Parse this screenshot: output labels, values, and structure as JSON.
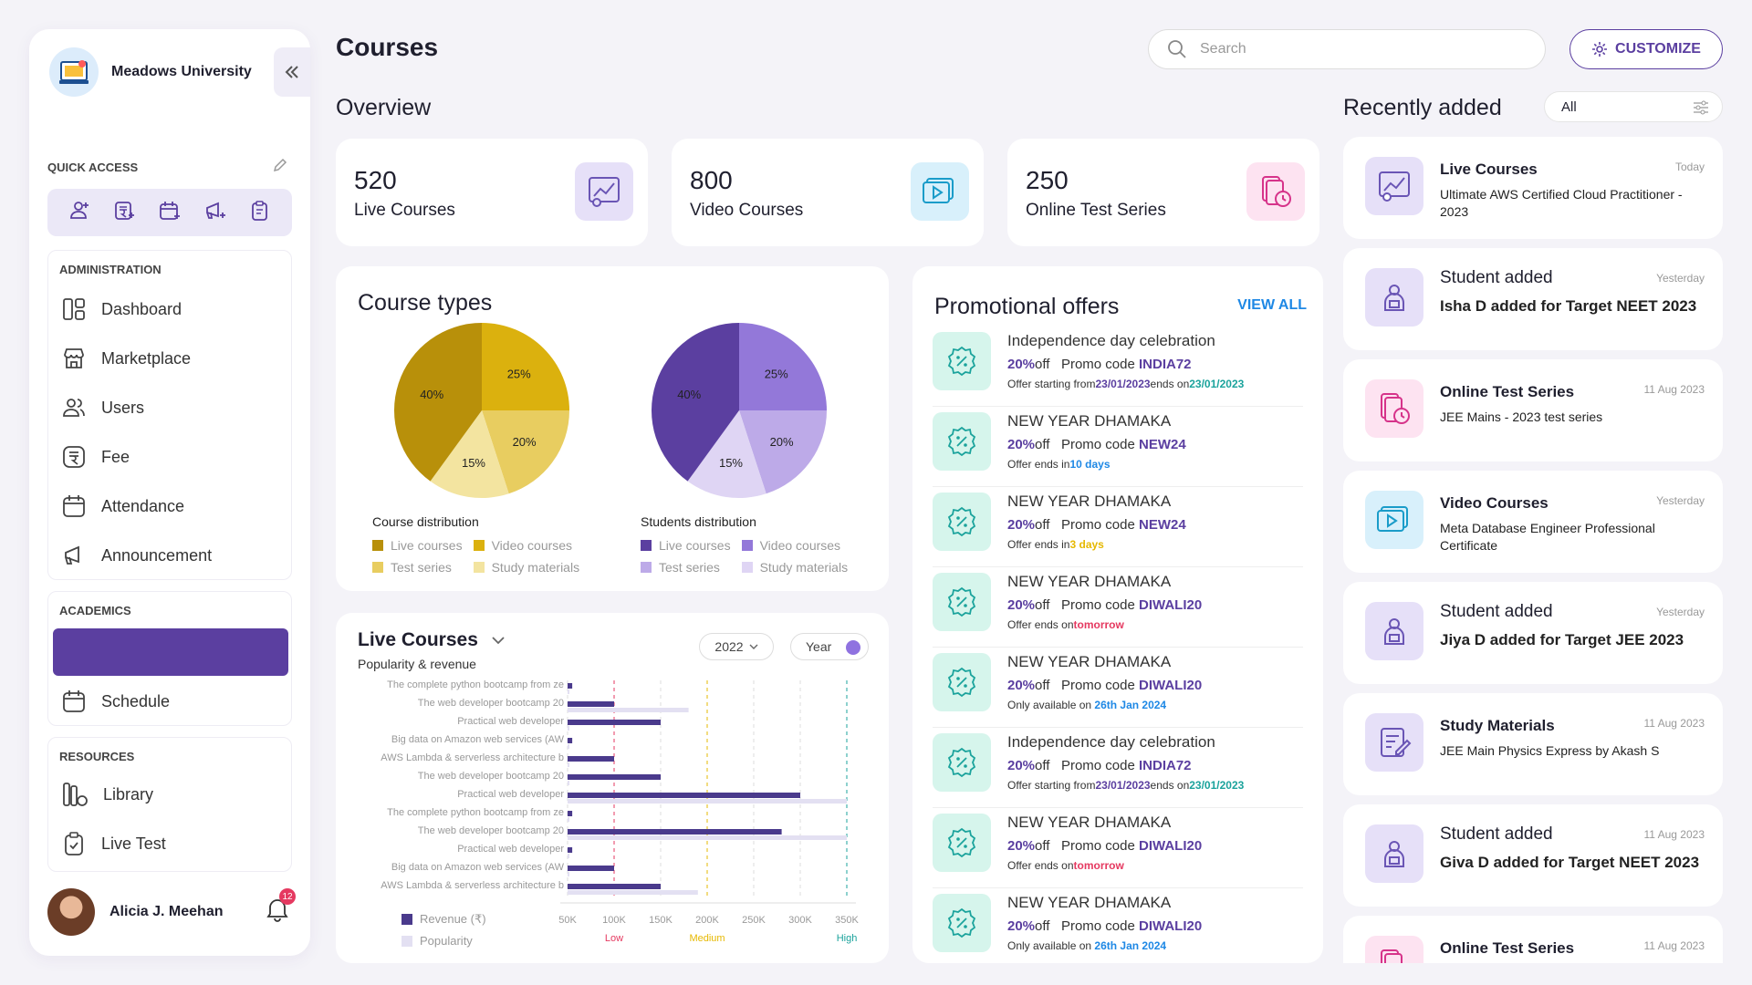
{
  "sidebar": {
    "brand": "Meadows University",
    "quick_access_label": "QUICK ACCESS",
    "sections": {
      "administration": {
        "label": "ADMINISTRATION",
        "items": [
          "Dashboard",
          "Marketplace",
          "Users",
          "Fee",
          "Attendance",
          "Announcement"
        ]
      },
      "academics": {
        "label": "ACADEMICS",
        "items": [
          "Schedule"
        ]
      },
      "resources": {
        "label": "RESOURCES",
        "items": [
          "Library",
          "Live Test"
        ]
      }
    },
    "user_name": "Alicia J. Meehan",
    "notifications": "12"
  },
  "header": {
    "title": "Courses",
    "search_placeholder": "Search",
    "customize_label": "CUSTOMIZE"
  },
  "overview": {
    "title": "Overview",
    "stats": [
      {
        "value": "520",
        "label": "Live Courses",
        "bg": "#e6e0f8",
        "color": "#6a55b5"
      },
      {
        "value": "800",
        "label": "Video Courses",
        "bg": "#d8f0fb",
        "color": "#1a9cc9"
      },
      {
        "value": "250",
        "label": "Online Test Series",
        "bg": "#fde3f1",
        "color": "#d6338a"
      }
    ]
  },
  "course_types": {
    "title": "Course types",
    "course_caption": "Course distribution",
    "student_caption": "Students distribution",
    "legend": [
      "Live courses",
      "Video courses",
      "Test series",
      "Study materials"
    ]
  },
  "chart_data": [
    {
      "type": "pie",
      "title": "Course distribution",
      "labels": [
        "Live courses",
        "Video courses",
        "Test series",
        "Study materials"
      ],
      "values": [
        40,
        25,
        20,
        15
      ],
      "colors": [
        "#b8900a",
        "#dbb10e",
        "#e8cd60",
        "#f3e4a0"
      ]
    },
    {
      "type": "pie",
      "title": "Students distribution",
      "labels": [
        "Live courses",
        "Video courses",
        "Test series",
        "Study materials"
      ],
      "values": [
        40,
        25,
        20,
        15
      ],
      "colors": [
        "#5b3fa0",
        "#9378d9",
        "#bdaae8",
        "#dfd5f4"
      ]
    },
    {
      "type": "bar",
      "title": "Live Courses",
      "categories": [
        "The complete python bootcamp from ze",
        "The web developer bootcamp 20",
        "Practical web developer",
        "Big data on Amazon web services (AW",
        "AWS Lambda & serverless architecture b",
        "The web developer bootcamp 20",
        "Practical web developer",
        "The complete python bootcamp from ze",
        "The web developer bootcamp 20",
        "Practical web developer",
        "Big data on Amazon web services (AW",
        "AWS Lambda & serverless architecture b"
      ],
      "series": [
        {
          "name": "Revenue (₹)",
          "values": [
            55000,
            100000,
            150000,
            55000,
            100000,
            150000,
            300000,
            55000,
            280000,
            55000,
            100000,
            150000
          ]
        },
        {
          "name": "Popularity",
          "values": [
            50000,
            180000,
            50000,
            50000,
            50000,
            50000,
            350000,
            50000,
            350000,
            50000,
            50000,
            190000
          ]
        }
      ],
      "x_ticks": [
        "50K",
        "100K",
        "150K",
        "200K",
        "250K",
        "300K",
        "350K"
      ],
      "xlim": [
        50000,
        350000
      ],
      "thresholds": [
        {
          "label": "Low",
          "value": 100000,
          "color": "#e53960"
        },
        {
          "label": "Medium",
          "value": 200000,
          "color": "#e6b800"
        },
        {
          "label": "High",
          "value": 350000,
          "color": "#1ba39c"
        }
      ]
    }
  ],
  "live_chart": {
    "title": "Live Courses",
    "subtitle": "Popularity & revenue",
    "year": "2022",
    "period_label": "Year"
  },
  "promotions": {
    "title": "Promotional offers",
    "view_all": "VIEW ALL",
    "items": [
      {
        "title": "Independence day celebration",
        "off": "20%",
        "off_word": "off",
        "promo_prefix": "Promo code ",
        "code": "INDIA72",
        "note": [
          {
            "t": "Offer starting from"
          },
          {
            "t": "23/01/2023",
            "c": "#5b3fa0"
          },
          {
            "t": "ends on"
          },
          {
            "t": "23/01/2023",
            "c": "#1ba39c"
          }
        ]
      },
      {
        "title": "NEW YEAR DHAMAKA",
        "off": "20%",
        "off_word": "off",
        "promo_prefix": "Promo code ",
        "code": "NEW24",
        "note": [
          {
            "t": "Offer ends in"
          },
          {
            "t": "10 days",
            "c": "#1e88e5"
          }
        ]
      },
      {
        "title": "NEW YEAR DHAMAKA",
        "off": "20%",
        "off_word": "off",
        "promo_prefix": "Promo code ",
        "code": "NEW24",
        "note": [
          {
            "t": "Offer ends in"
          },
          {
            "t": "3 days",
            "c": "#e6b800"
          }
        ]
      },
      {
        "title": "NEW YEAR DHAMAKA",
        "off": "20%",
        "off_word": "off",
        "promo_prefix": "Promo code ",
        "code": "DIWALI20",
        "note": [
          {
            "t": "Offer ends on"
          },
          {
            "t": "tomorrow",
            "c": "#e53960"
          }
        ]
      },
      {
        "title": "NEW YEAR DHAMAKA",
        "off": "20%",
        "off_word": "off",
        "promo_prefix": "Promo code ",
        "code": "DIWALI20",
        "note": [
          {
            "t": "Only available on "
          },
          {
            "t": "26th Jan 2024",
            "c": "#1e88e5"
          }
        ]
      },
      {
        "title": "Independence day celebration",
        "off": "20%",
        "off_word": "off",
        "promo_prefix": "Promo code ",
        "code": "INDIA72",
        "note": [
          {
            "t": "Offer starting from"
          },
          {
            "t": "23/01/2023",
            "c": "#5b3fa0"
          },
          {
            "t": "ends on"
          },
          {
            "t": "23/01/2023",
            "c": "#1ba39c"
          }
        ]
      },
      {
        "title": "NEW YEAR DHAMAKA",
        "off": "20%",
        "off_word": "off",
        "promo_prefix": "Promo code ",
        "code": "DIWALI20",
        "note": [
          {
            "t": "Offer ends on"
          },
          {
            "t": "tomorrow",
            "c": "#e53960"
          }
        ]
      },
      {
        "title": "NEW YEAR DHAMAKA",
        "off": "20%",
        "off_word": "off",
        "promo_prefix": "Promo code ",
        "code": "DIWALI20",
        "note": [
          {
            "t": "Only available on "
          },
          {
            "t": "26th Jan 2024",
            "c": "#1e88e5"
          }
        ]
      }
    ]
  },
  "recent": {
    "title": "Recently added",
    "filter": "All",
    "items": [
      {
        "title": "Live Courses",
        "desc": "Ultimate AWS Certified Cloud Practitioner - 2023",
        "time": "Today",
        "icon": "chart-icon",
        "kind": "course",
        "bg": "#e6e0f8",
        "color": "#6a55b5"
      },
      {
        "title": "Student added",
        "desc": "Isha D added for Target NEET 2023",
        "time": "Yesterday",
        "icon": "student-icon",
        "kind": "student",
        "bg": "#e6e0f8",
        "color": "#6a55b5"
      },
      {
        "title": "Online Test Series",
        "desc": "JEE Mains - 2023 test series",
        "time": "11 Aug 2023",
        "icon": "test-icon",
        "kind": "course",
        "bg": "#fde3f1",
        "color": "#d6338a"
      },
      {
        "title": "Video Courses",
        "desc": "Meta Database Engineer Professional Certificate",
        "time": "Yesterday",
        "icon": "video-icon",
        "kind": "course",
        "bg": "#d8f0fb",
        "color": "#1a9cc9"
      },
      {
        "title": "Student added",
        "desc": "Jiya D added for Target JEE 2023",
        "time": "Yesterday",
        "icon": "student-icon",
        "kind": "student",
        "bg": "#e6e0f8",
        "color": "#6a55b5"
      },
      {
        "title": "Study Materials",
        "desc": "JEE Main Physics Express by Akash S",
        "time": "11 Aug 2023",
        "icon": "study-icon",
        "kind": "course",
        "bg": "#e6e0f8",
        "color": "#6a55b5"
      },
      {
        "title": "Student added",
        "desc": "Giva D added for Target NEET 2023",
        "time": "11 Aug 2023",
        "icon": "student-icon",
        "kind": "student",
        "bg": "#e6e0f8",
        "color": "#6a55b5"
      },
      {
        "title": "Online Test Series",
        "desc": "",
        "time": "11 Aug 2023",
        "icon": "test-icon",
        "kind": "course",
        "bg": "#fde3f1",
        "color": "#d6338a"
      }
    ]
  }
}
